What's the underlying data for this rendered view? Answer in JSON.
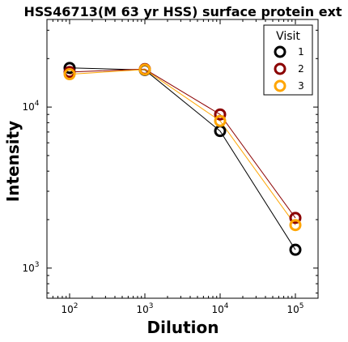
{
  "chart_data": {
    "type": "line",
    "title": "HSS46713(M 63 yr HSS) surface protein ext",
    "xlabel": "Dilution",
    "ylabel": "Intensity",
    "x_scale": "log",
    "y_scale": "log",
    "xlim": [
      50,
      200000
    ],
    "ylim": [
      650,
      35000
    ],
    "x": [
      100,
      1000,
      10000,
      100000
    ],
    "x_ticks": [
      {
        "value": 100,
        "base": "10",
        "exp": "2"
      },
      {
        "value": 1000,
        "base": "10",
        "exp": "3"
      },
      {
        "value": 10000,
        "base": "10",
        "exp": "4"
      },
      {
        "value": 100000,
        "base": "10",
        "exp": "5"
      }
    ],
    "y_ticks": [
      {
        "value": 1000,
        "base": "10",
        "exp": "3"
      },
      {
        "value": 10000,
        "base": "10",
        "exp": "4"
      }
    ],
    "legend": {
      "title": "Visit",
      "placement": "top-right"
    },
    "series": [
      {
        "name": "1",
        "color": "#000000",
        "values": [
          17500,
          17000,
          7100,
          1300
        ]
      },
      {
        "name": "2",
        "color": "#8b0000",
        "values": [
          16500,
          17200,
          9000,
          2050
        ]
      },
      {
        "name": "3",
        "color": "#ffa500",
        "values": [
          16000,
          17100,
          8200,
          1850
        ]
      }
    ],
    "grid": false
  }
}
